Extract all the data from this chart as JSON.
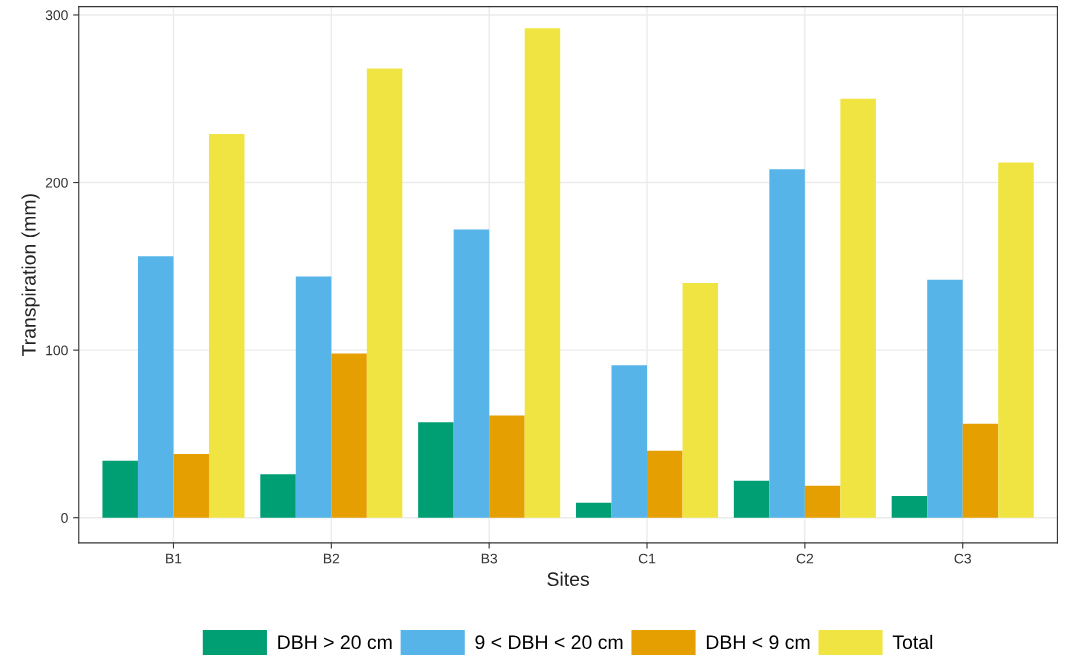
{
  "chart_data": {
    "type": "bar",
    "xlabel": "Sites",
    "ylabel": "Transpiration (mm)",
    "categories": [
      "B1",
      "B2",
      "B3",
      "C1",
      "C2",
      "C3"
    ],
    "series": [
      {
        "name": "DBH > 20 cm",
        "color": "#009e73",
        "values": [
          34,
          26,
          57,
          9,
          22,
          13
        ]
      },
      {
        "name": "9 < DBH < 20 cm",
        "color": "#56b4e9",
        "values": [
          156,
          144,
          172,
          91,
          208,
          142
        ]
      },
      {
        "name": "DBH < 9 cm",
        "color": "#e69f00",
        "values": [
          38,
          98,
          61,
          40,
          19,
          56
        ]
      },
      {
        "name": "Total",
        "color": "#f0e442",
        "values": [
          229,
          268,
          292,
          140,
          250,
          212
        ]
      }
    ],
    "ylim": [
      -15,
      305
    ],
    "yticks": [
      0,
      100,
      200,
      300
    ],
    "grid": true,
    "legend": "bottom"
  }
}
